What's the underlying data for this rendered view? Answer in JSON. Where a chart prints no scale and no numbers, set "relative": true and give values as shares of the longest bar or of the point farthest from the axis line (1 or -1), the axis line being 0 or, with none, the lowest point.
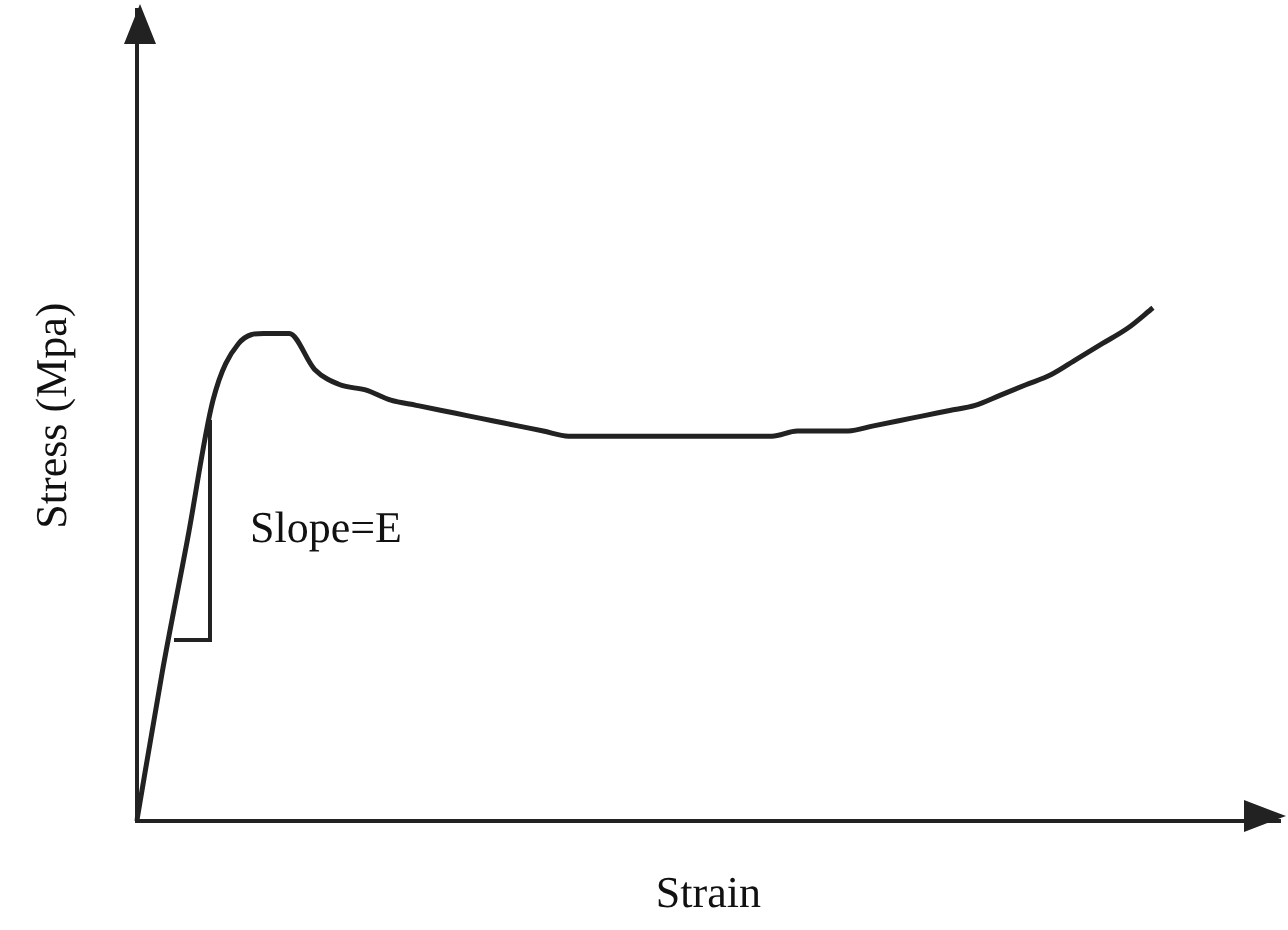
{
  "chart_data": {
    "type": "line",
    "relative": true,
    "xlabel": "Strain",
    "ylabel": "Stress (Mpa)",
    "annotations": [
      "Slope=E"
    ],
    "categories": [
      null,
      null,
      null,
      null,
      null,
      null,
      null,
      null,
      null,
      null,
      null,
      null,
      null,
      null,
      null,
      null,
      null,
      null,
      null,
      null,
      null,
      null,
      null,
      null,
      null,
      null,
      null,
      null,
      null,
      null,
      null,
      null,
      null,
      null,
      null,
      null,
      null,
      null,
      null,
      null,
      null,
      null,
      null,
      null,
      null,
      null
    ],
    "series": [
      {
        "color": "#222222",
        "values": [
          0,
          0.29,
          0.55,
          0.82,
          0.93,
          0.95,
          0.95,
          0.88,
          0.85,
          0.84,
          0.82,
          0.81,
          0.8,
          0.79,
          0.78,
          0.77,
          0.76,
          0.75,
          0.75,
          0.75,
          0.75,
          0.75,
          0.75,
          0.75,
          0.75,
          0.75,
          0.76,
          0.76,
          0.76,
          0.77,
          0.78,
          0.79,
          0.8,
          0.81,
          0.83,
          0.85,
          0.87,
          0.9,
          0.93,
          0.96,
          1,
          null,
          null,
          null,
          null,
          null
        ]
      }
    ],
    "marker": "none",
    "line_style": "solid",
    "grid": false,
    "legend": false
  }
}
